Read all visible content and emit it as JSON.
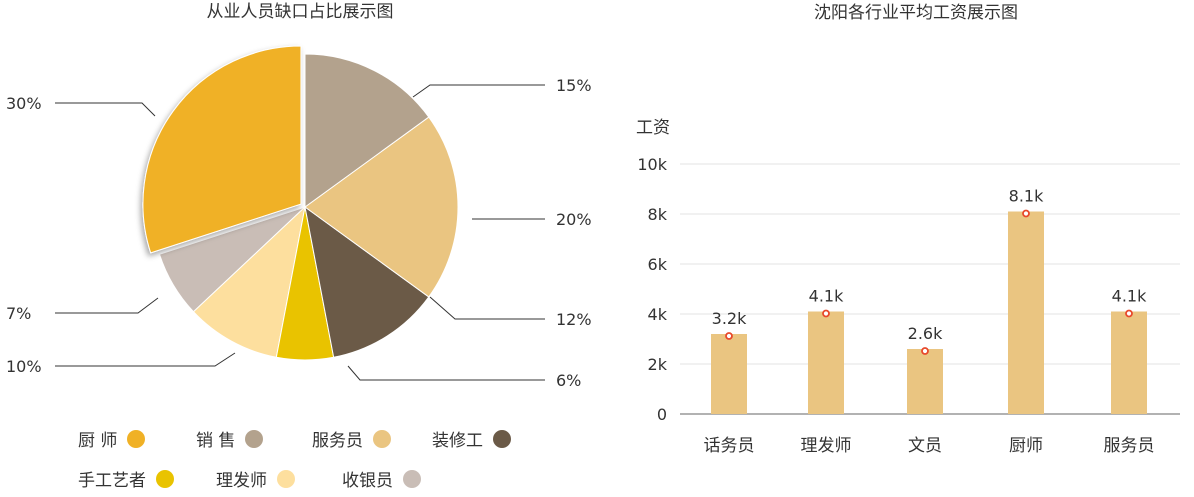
{
  "chart_data": [
    {
      "type": "pie",
      "title": "从业人员缺口占比展示图",
      "slices": [
        {
          "label": "销 售",
          "value": 15,
          "value_label": "15%",
          "color": "#B3A28D"
        },
        {
          "label": "服务员",
          "value": 20,
          "value_label": "20%",
          "color": "#EAC581"
        },
        {
          "label": "装修工",
          "value": 12,
          "value_label": "12%",
          "color": "#6B5A47"
        },
        {
          "label": "手工艺者",
          "value": 6,
          "value_label": "6%",
          "color": "#E9C300"
        },
        {
          "label": "理发师",
          "value": 10,
          "value_label": "10%",
          "color": "#FDDF9E"
        },
        {
          "label": "收银员",
          "value": 7,
          "value_label": "7%",
          "color": "#C9BDB6"
        },
        {
          "label": "厨 师",
          "value": 30,
          "value_label": "30%",
          "color": "#F0B126",
          "exploded": true
        }
      ],
      "legend_order": [
        "厨 师",
        "销 售",
        "服务员",
        "装修工",
        "手工艺者",
        "理发师",
        "收银员"
      ],
      "legend_position": "bottom"
    },
    {
      "type": "bar",
      "title": "沈阳各行业平均工资展示图",
      "ylabel": "工资",
      "categories": [
        "话务员",
        "理发师",
        "文员",
        "厨师",
        "服务员"
      ],
      "values": [
        3.2,
        4.1,
        2.6,
        8.1,
        4.1
      ],
      "data_labels": [
        "3.2k",
        "4.1k",
        "2.6k",
        "8.1k",
        "4.1k"
      ],
      "ylim": [
        0,
        10
      ],
      "yticks": [
        {
          "value": 0,
          "label": "0"
        },
        {
          "value": 2,
          "label": "2k"
        },
        {
          "value": 4,
          "label": "4k"
        },
        {
          "value": 6,
          "label": "6k"
        },
        {
          "value": 8,
          "label": "8k"
        },
        {
          "value": 10,
          "label": "10k"
        }
      ],
      "bar_color": "#EAC581",
      "marker_color": "#E8492C",
      "grid": true
    }
  ]
}
